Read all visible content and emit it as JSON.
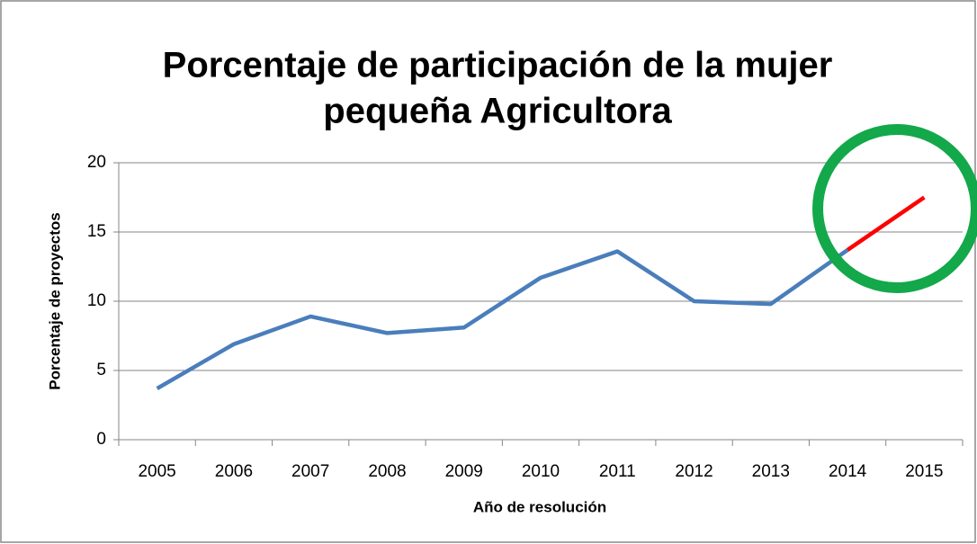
{
  "chart_data": {
    "type": "line",
    "title": [
      "Porcentaje de participación de la mujer",
      "pequeña Agricultora"
    ],
    "x_label": "Año de resolución",
    "y_label": "Porcentaje de proyectos",
    "categories": [
      "2005",
      "2006",
      "2007",
      "2008",
      "2009",
      "2010",
      "2011",
      "2012",
      "2013",
      "2014",
      "2015"
    ],
    "values": [
      3.7,
      6.9,
      8.9,
      7.7,
      8.1,
      11.7,
      13.6,
      10.0,
      9.8,
      13.7,
      17.5
    ],
    "segment_colors": [
      "#4a7ebb",
      "#4a7ebb",
      "#4a7ebb",
      "#4a7ebb",
      "#4a7ebb",
      "#4a7ebb",
      "#4a7ebb",
      "#4a7ebb",
      "#4a7ebb",
      "#ff0000"
    ],
    "ylim": [
      0,
      20
    ],
    "yticks": [
      0,
      5,
      10,
      15,
      20
    ],
    "grid": true
  }
}
